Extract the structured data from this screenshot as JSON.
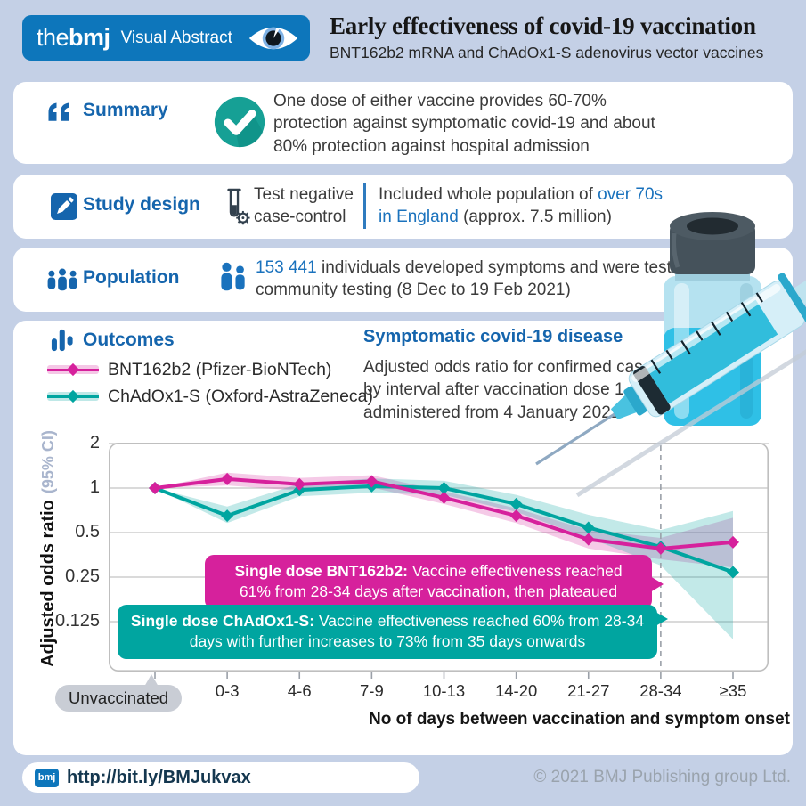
{
  "colors": {
    "page_bg": "#c4d0e6",
    "brand_blue": "#0d76bb",
    "heading_blue": "#1565ad",
    "link_blue": "#1a72bd",
    "pink": "#d6219c",
    "teal": "#00a5a0",
    "check_teal": "#16a095"
  },
  "header": {
    "brand_the": "the",
    "brand_bmj": "bmj",
    "brand_label": "Visual Abstract",
    "title": "Early effectiveness of covid-19 vaccination",
    "subtitle": "BNT162b2 mRNA and ChAdOx1-S adenovirus vector vaccines"
  },
  "summary": {
    "heading": "Summary",
    "text": "One dose of either vaccine provides 60-70% protection against symptomatic covid-19 and about 80% protection against hospital admission"
  },
  "study_design": {
    "heading": "Study design",
    "method": "Test negative case-control",
    "desc_prefix": "Included whole population of ",
    "desc_link": "over 70s in England",
    "desc_suffix": " (approx. 7.5 million)"
  },
  "population": {
    "heading": "Population",
    "count": "153 441",
    "text": " individuals developed symptoms and were tested through community testing (8 Dec to 19 Feb 2021)"
  },
  "outcomes": {
    "heading": "Outcomes",
    "panel_title": "Symptomatic covid-19 disease",
    "description": "Adjusted odds ratio for confirmed case by interval after vaccination dose 1, administered from 4 January 2021"
  },
  "callouts": [
    {
      "lead": "Single dose BNT162b2:",
      "text": "Vaccine effectiveness reached 61% from 28-34 days after vaccination, then plateaued"
    },
    {
      "lead": "Single dose ChAdOx1-S:",
      "text": "Vaccine effectiveness reached 60% from 28-34 days with further increases to 73% from 35 days onwards"
    }
  ],
  "chart_data": {
    "type": "line",
    "log_scale": true,
    "title": "Symptomatic covid-19 disease",
    "categories": [
      "Unvaccinated",
      "0-3",
      "4-6",
      "7-9",
      "10-13",
      "14-20",
      "21-27",
      "28-34",
      "≥35"
    ],
    "series": [
      {
        "name": "BNT162b2 (Pfizer-BioNTech)",
        "color": "#d6219c",
        "values": [
          1.0,
          1.15,
          1.06,
          1.11,
          0.86,
          0.65,
          0.45,
          0.39,
          0.43
        ],
        "ci_lower": [
          1.0,
          1.04,
          0.96,
          1.01,
          0.78,
          0.58,
          0.39,
          0.33,
          0.29
        ],
        "ci_upper": [
          1.0,
          1.27,
          1.17,
          1.22,
          0.95,
          0.73,
          0.52,
          0.46,
          0.63
        ]
      },
      {
        "name": "ChAdOx1-S (Oxford-AstraZeneca)",
        "color": "#00a5a0",
        "values": [
          1.0,
          0.65,
          0.97,
          1.03,
          1.0,
          0.78,
          0.54,
          0.4,
          0.27
        ],
        "ci_lower": [
          1.0,
          0.58,
          0.88,
          0.93,
          0.9,
          0.69,
          0.46,
          0.3,
          0.095
        ],
        "ci_upper": [
          1.0,
          0.75,
          1.07,
          1.16,
          1.12,
          0.9,
          0.66,
          0.52,
          0.7
        ]
      }
    ],
    "yticks": [
      2,
      1,
      0.5,
      0.25,
      0.125
    ],
    "ylim": [
      0.057,
      2
    ],
    "ylabel": "Adjusted odds ratio",
    "ylabel_sub": "(95% CI)",
    "xlabel": "No of days between vaccination and symptom onset",
    "dashed_line_at": "28-34",
    "grid": true,
    "legend_position": "top-left"
  },
  "footer": {
    "logo": "bmj",
    "url": "http://bit.ly/BMJukvax",
    "copyright": "© 2021 BMJ Publishing group Ltd."
  }
}
